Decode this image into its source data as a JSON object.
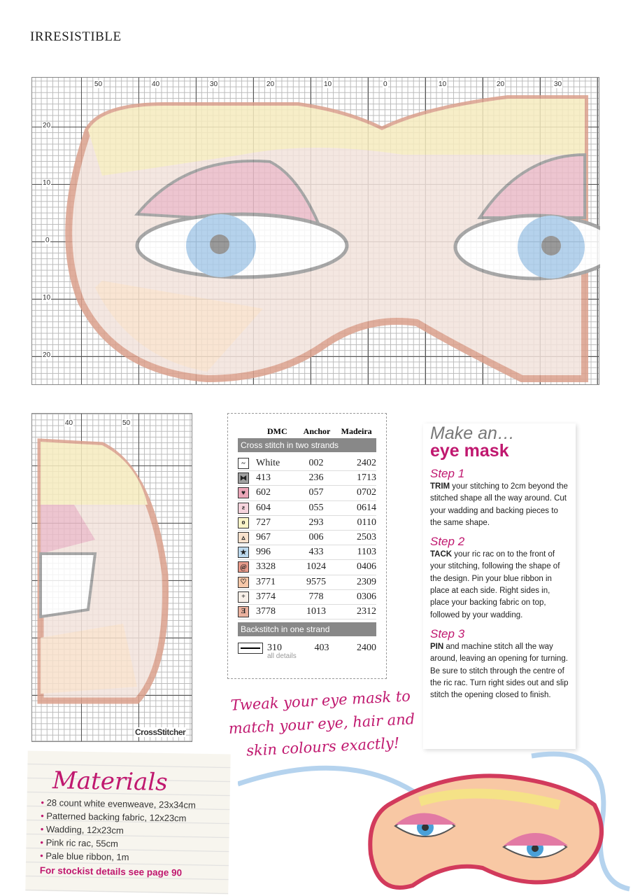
{
  "section_title": "IRRESISTIBLE",
  "chart_main": {
    "top_ticks": [
      "50",
      "40",
      "30",
      "20",
      "10",
      "0",
      "10",
      "20",
      "30"
    ],
    "left_ticks": [
      "20",
      "10",
      "0",
      "10",
      "20"
    ]
  },
  "chart_side": {
    "top_ticks": [
      "40",
      "50"
    ],
    "logo": "CrossStitcher"
  },
  "key": {
    "headers": [
      "DMC",
      "Anchor",
      "Madeira"
    ],
    "cross_label": "Cross stitch in two strands",
    "rows": [
      {
        "symbol": "~",
        "color": "#ffffff",
        "dmc": "White",
        "anchor": "002",
        "madeira": "2402"
      },
      {
        "symbol": "⧓",
        "color": "#a0a0a0",
        "dmc": "413",
        "anchor": "236",
        "madeira": "1713"
      },
      {
        "symbol": "♥",
        "color": "#eba6b8",
        "dmc": "602",
        "anchor": "057",
        "madeira": "0702"
      },
      {
        "symbol": "ƨ",
        "color": "#f6d4dd",
        "dmc": "604",
        "anchor": "055",
        "madeira": "0614"
      },
      {
        "symbol": "o",
        "color": "#fbf4c8",
        "dmc": "727",
        "anchor": "293",
        "madeira": "0110"
      },
      {
        "symbol": "▵",
        "color": "#f8e1cc",
        "dmc": "967",
        "anchor": "006",
        "madeira": "2503"
      },
      {
        "symbol": "★",
        "color": "#bcd9ee",
        "dmc": "996",
        "anchor": "433",
        "madeira": "1103"
      },
      {
        "symbol": "@",
        "color": "#e79a8a",
        "dmc": "3328",
        "anchor": "1024",
        "madeira": "0406"
      },
      {
        "symbol": "♡",
        "color": "#f7c7a8",
        "dmc": "3771",
        "anchor": "9575",
        "madeira": "2309"
      },
      {
        "symbol": "+",
        "color": "#f8efe8",
        "dmc": "3774",
        "anchor": "778",
        "madeira": "0306"
      },
      {
        "symbol": "Ǝ",
        "color": "#eab19e",
        "dmc": "3778",
        "anchor": "1013",
        "madeira": "2312"
      }
    ],
    "back_label": "Backstitch in one strand",
    "back": {
      "dmc": "310",
      "anchor": "403",
      "madeira": "2400",
      "note": "all details"
    }
  },
  "instructions": {
    "pre": "Make an…",
    "title": "eye mask",
    "steps": [
      {
        "title": "Step 1",
        "lead": "TRIM",
        "text": " your stitching to 2cm beyond the stitched shape all the way around. Cut your wadding and backing pieces to the same shape."
      },
      {
        "title": "Step 2",
        "lead": "TACK",
        "text": " your ric rac on to the front of your stitching, following the shape of the design. Pin your blue ribbon in place at each side. Right sides in, place your backing fabric on top, followed by your wadding."
      },
      {
        "title": "Step 3",
        "lead": "PIN",
        "text": " and machine stitch all the way around, leaving an opening for turning. Be sure to stitch through the centre of the ric rac. Turn right sides out and slip stitch the opening closed to finish."
      }
    ]
  },
  "tip": "Tweak your eye mask to match your eye, hair and skin colours exactly!",
  "materials": {
    "title": "Materials",
    "items": [
      "28 count white evenweave, 23x34cm",
      "Patterned backing fabric, 12x23cm",
      "Wadding, 12x23cm",
      "Pink ric rac, 55cm",
      "Pale blue ribbon, 1m"
    ],
    "stockist": "For stockist details see page 90"
  },
  "colors": {
    "accent": "#c0186f",
    "skin": "#f3e3dc",
    "hair": "#f6ecbf",
    "border": "#dba08c",
    "lid": "#ebbcc8",
    "iris": "#a9cbe9"
  }
}
